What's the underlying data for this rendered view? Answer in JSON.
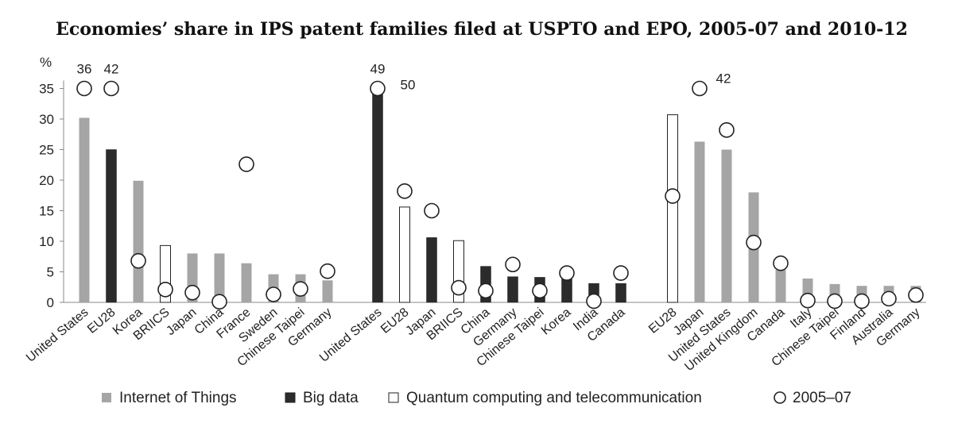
{
  "chart_data": {
    "type": "bar",
    "title": "Economies’ share in IPS patent families filed at USPTO and EPO, 2005-07 and 2010-12",
    "ylabel": "%",
    "ylim": [
      0,
      35
    ],
    "yticks": [
      0,
      5,
      10,
      15,
      20,
      25,
      30,
      35
    ],
    "grid": false,
    "legend_position": "bottom",
    "colors": {
      "Internet of Things": "#a5a5a5",
      "Big data": "#2b2b2b",
      "Quantum computing and telecommunication": "#ffffff",
      "2005–07": "#ffffff"
    },
    "legend": [
      {
        "label": "Internet of Things",
        "marker": "grey-square"
      },
      {
        "label": "Big data",
        "marker": "black-square"
      },
      {
        "label": "Quantum computing and telecommunication",
        "marker": "white-square"
      },
      {
        "label": "2005–07",
        "marker": "circle"
      }
    ],
    "groups": [
      {
        "categories": [
          "United States",
          "EU28",
          "Korea",
          "BRIICS",
          "Japan",
          "China",
          "France",
          "Sweden",
          "Chinese Taipei",
          "Germany"
        ],
        "series": [
          "Internet of Things",
          "Big data",
          "Internet of Things",
          "Quantum computing and telecommunication",
          "Internet of Things",
          "Internet of Things",
          "Internet of Things",
          "Internet of Things",
          "Internet of Things",
          "Internet of Things"
        ],
        "values_2010_12": [
          30.2,
          25,
          19.9,
          9.3,
          8,
          8,
          6.4,
          4.6,
          4.6,
          3.6
        ],
        "values_2005_07": [
          36,
          42,
          6.8,
          2.1,
          1.6,
          0.1,
          22.6,
          1.3,
          2.2,
          5.1
        ]
      },
      {
        "categories": [
          "United States",
          "EU28",
          "Japan",
          "BRIICS",
          "China",
          "Germany",
          "Chinese Taipei",
          "Korea",
          "India",
          "Canada"
        ],
        "series": [
          "Big data",
          "Quantum computing and telecommunication",
          "Big data",
          "Quantum computing and telecommunication",
          "Big data",
          "Big data",
          "Big data",
          "Big data",
          "Big data",
          "Big data"
        ],
        "values_2010_12": [
          50,
          15.6,
          10.6,
          10.1,
          5.9,
          4.2,
          4.1,
          4.1,
          3.1,
          3.1
        ],
        "values_2005_07": [
          49,
          18.2,
          15,
          2.4,
          1.9,
          6.2,
          1.9,
          4.8,
          0.2,
          4.8
        ]
      },
      {
        "categories": [
          "EU28",
          "Japan",
          "United States",
          "United Kingdom",
          "Canada",
          "Italy",
          "Chinese Taipei",
          "Finland",
          "Australia",
          "Germany"
        ],
        "series": [
          "Quantum computing and telecommunication",
          "Internet of Things",
          "Internet of Things",
          "Internet of Things",
          "Internet of Things",
          "Internet of Things",
          "Internet of Things",
          "Internet of Things",
          "Internet of Things",
          "Internet of Things"
        ],
        "values_2010_12": [
          30.7,
          26.3,
          25,
          18,
          5.3,
          3.9,
          3,
          2.7,
          2.7,
          2.7
        ],
        "values_2005_07": [
          17.4,
          42,
          28.2,
          9.8,
          6.4,
          0.3,
          0.2,
          0.2,
          0.6,
          1.2
        ]
      }
    ],
    "value_labels": [
      "36",
      "42",
      "49",
      "50",
      "42"
    ]
  }
}
